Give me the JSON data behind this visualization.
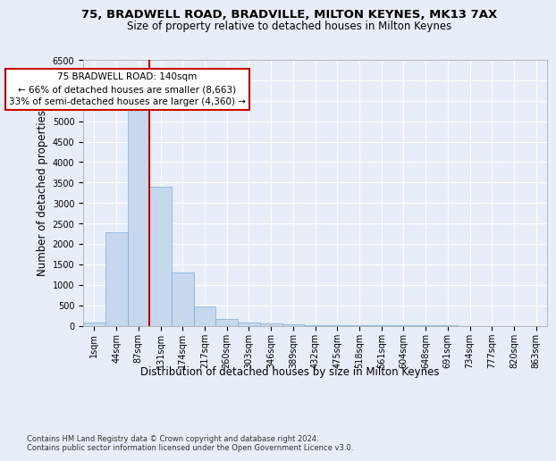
{
  "title_line1": "75, BRADWELL ROAD, BRADVILLE, MILTON KEYNES, MK13 7AX",
  "title_line2": "Size of property relative to detached houses in Milton Keynes",
  "xlabel": "Distribution of detached houses by size in Milton Keynes",
  "ylabel": "Number of detached properties",
  "footnote": "Contains HM Land Registry data © Crown copyright and database right 2024.\nContains public sector information licensed under the Open Government Licence v3.0.",
  "bin_labels": [
    "1sqm",
    "44sqm",
    "87sqm",
    "131sqm",
    "174sqm",
    "217sqm",
    "260sqm",
    "303sqm",
    "346sqm",
    "389sqm",
    "432sqm",
    "475sqm",
    "518sqm",
    "561sqm",
    "604sqm",
    "648sqm",
    "691sqm",
    "734sqm",
    "777sqm",
    "820sqm",
    "863sqm"
  ],
  "bar_values": [
    75,
    2280,
    5420,
    3390,
    1310,
    480,
    165,
    80,
    50,
    30,
    15,
    10,
    5,
    3,
    2,
    1,
    1,
    0,
    0,
    0,
    0
  ],
  "bar_color": "#c5d8ee",
  "bar_edge_color": "#7aadd4",
  "vline_position": 2.5,
  "vline_color": "#cc0000",
  "annotation_text": "75 BRADWELL ROAD: 140sqm\n← 66% of detached houses are smaller (8,663)\n33% of semi-detached houses are larger (4,360) →",
  "annotation_box_facecolor": "white",
  "annotation_box_edgecolor": "#cc0000",
  "ylim_max": 6500,
  "ytick_step": 500,
  "bg_color": "#e8eef8",
  "grid_color": "white",
  "title_fontsize": 9.5,
  "subtitle_fontsize": 8.5,
  "axis_label_fontsize": 8.5,
  "tick_fontsize": 7,
  "annotation_fontsize": 7.5,
  "footnote_fontsize": 6.0
}
